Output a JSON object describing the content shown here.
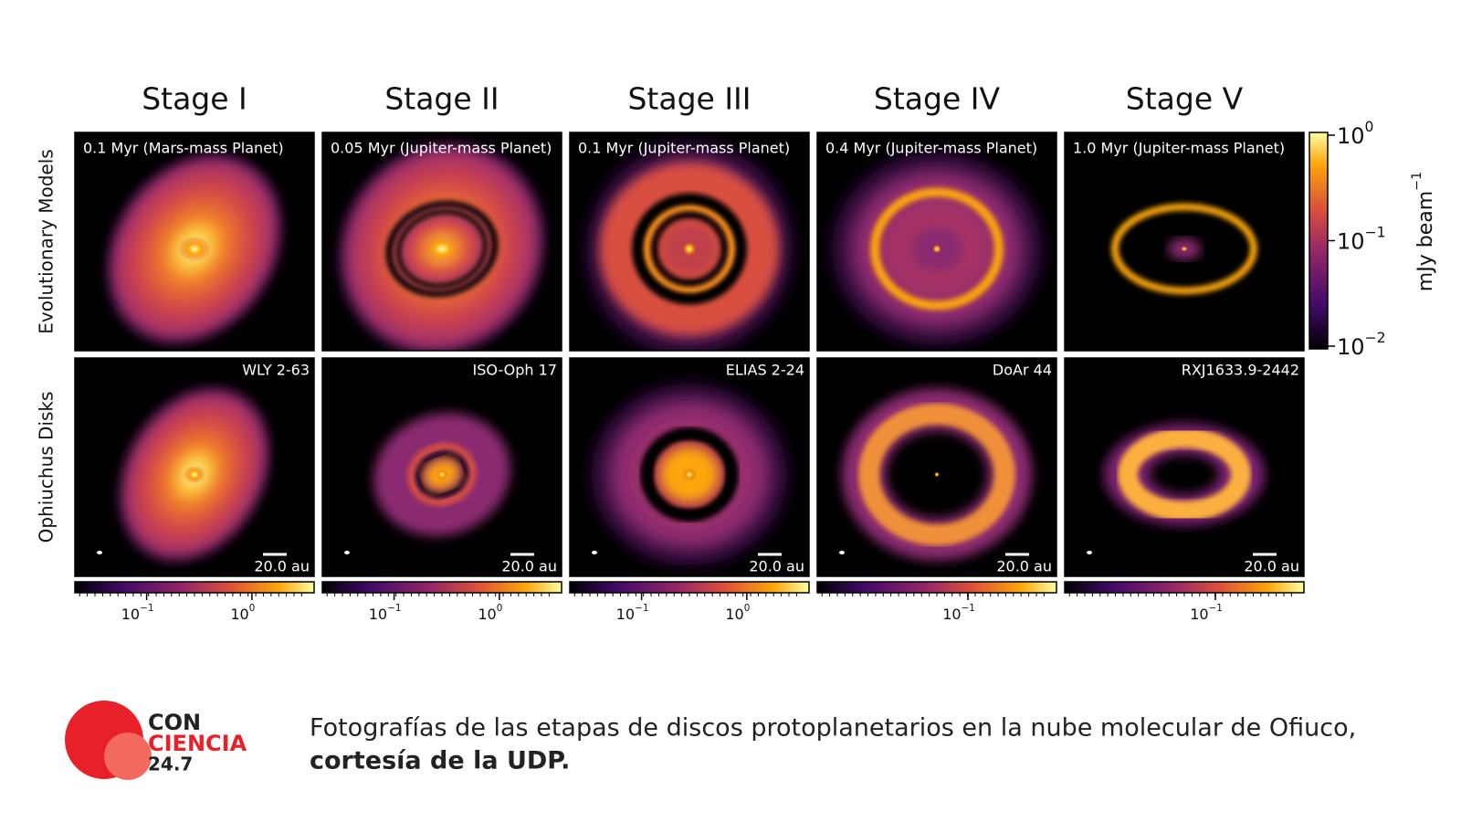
{
  "columns": [
    "Stage I",
    "Stage II",
    "Stage III",
    "Stage IV",
    "Stage V"
  ],
  "rows": [
    "Evolutionary Models",
    "Ophiuchus Disks"
  ],
  "models": [
    "0.1 Myr (Mars-mass Planet)",
    "0.05 Myr (Jupiter-mass Planet)",
    "0.1 Myr (Jupiter-mass Planet)",
    "0.4 Myr (Jupiter-mass Planet)",
    "1.0 Myr (Jupiter-mass Planet)"
  ],
  "disks": [
    {
      "name": "WLY 2-63",
      "scale": "20.0 au"
    },
    {
      "name": "ISO-Oph 17",
      "scale": "20.0 au"
    },
    {
      "name": "ELIAS 2-24",
      "scale": "20.0 au"
    },
    {
      "name": "DoAr 44",
      "scale": "20.0 au"
    },
    {
      "name": "RXJ1633.9-2442",
      "scale": "20.0 au"
    }
  ],
  "colorbar": {
    "label": {
      "text": "mJy beam",
      "exp": "−1"
    },
    "ticks": [
      {
        "base": "10",
        "exp": "0"
      },
      {
        "base": "10",
        "exp": "−1"
      },
      {
        "base": "10",
        "exp": "−2"
      }
    ]
  },
  "disk_colorbars": [
    [
      {
        "base": "10",
        "exp": "−1"
      },
      {
        "base": "10",
        "exp": "0"
      }
    ],
    [
      {
        "base": "10",
        "exp": "−1"
      },
      {
        "base": "10",
        "exp": "0"
      }
    ],
    [
      {
        "base": "10",
        "exp": "−1"
      },
      {
        "base": "10",
        "exp": "0"
      }
    ],
    [
      {
        "base": "10",
        "exp": "−1"
      }
    ],
    [
      {
        "base": "10",
        "exp": "−1"
      }
    ]
  ],
  "caption": {
    "text": "Fotografías de las etapas de discos protoplanetarios en la nube molecular de Ofiuco,",
    "bold": "cortesía de la UDP."
  },
  "logo": {
    "line1": "CON",
    "line2": "CIENCIA",
    "line3": "24.7"
  }
}
